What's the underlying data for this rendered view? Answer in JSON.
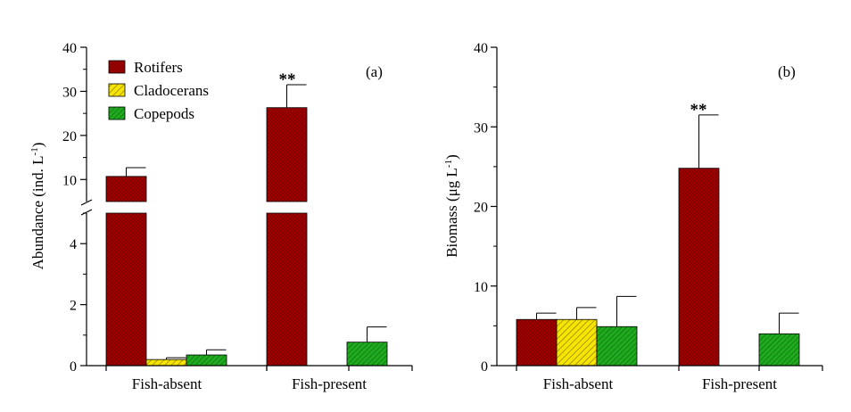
{
  "chart_data": [
    {
      "type": "bar",
      "panel_label": "(a)",
      "categories": [
        "Fish-absent",
        "Fish-present"
      ],
      "ylabel": "Abundance (ind. L",
      "ylabel_sup": "-1",
      "ylabel_end": ")",
      "y_axis_break": true,
      "ylim_lower": [
        0,
        5
      ],
      "ylim_upper": [
        5,
        40
      ],
      "yticks_lower": [
        "0",
        "2",
        "4"
      ],
      "yticks_upper": [
        "10",
        "20",
        "30",
        "40"
      ],
      "series": [
        {
          "name": "Rotifers",
          "color": "#a00000",
          "pattern": "dots",
          "values": [
            10.7,
            26.3
          ],
          "errors": [
            2.0,
            5.2
          ]
        },
        {
          "name": "Cladocerans",
          "color": "#f7e400",
          "pattern": "hatch",
          "values": [
            0.2,
            0
          ],
          "errors": [
            0.06,
            0
          ]
        },
        {
          "name": "Copepods",
          "color": "#1faa1f",
          "pattern": "hatch",
          "values": [
            0.35,
            0.77
          ],
          "errors": [
            0.17,
            0.5
          ]
        }
      ],
      "annotations": [
        {
          "text": "**",
          "category": "Fish-present",
          "series": "Rotifers"
        }
      ],
      "legend": "top-left"
    },
    {
      "type": "bar",
      "panel_label": "(b)",
      "categories": [
        "Fish-absent",
        "Fish-present"
      ],
      "ylabel": "Biomass (μg L",
      "ylabel_sup": "-1",
      "ylabel_end": ")",
      "ylim": [
        0,
        40
      ],
      "yticks": [
        "0",
        "10",
        "20",
        "30",
        "40"
      ],
      "series": [
        {
          "name": "Rotifers",
          "color": "#a00000",
          "pattern": "dots",
          "values": [
            5.8,
            24.8
          ],
          "errors": [
            0.8,
            6.7
          ]
        },
        {
          "name": "Cladocerans",
          "color": "#f7e400",
          "pattern": "hatch",
          "values": [
            5.8,
            0
          ],
          "errors": [
            1.5,
            0
          ]
        },
        {
          "name": "Copepods",
          "color": "#1faa1f",
          "pattern": "hatch",
          "values": [
            4.9,
            4.0
          ],
          "errors": [
            3.8,
            2.6
          ]
        }
      ],
      "annotations": [
        {
          "text": "**",
          "category": "Fish-present",
          "series": "Rotifers"
        }
      ]
    }
  ]
}
